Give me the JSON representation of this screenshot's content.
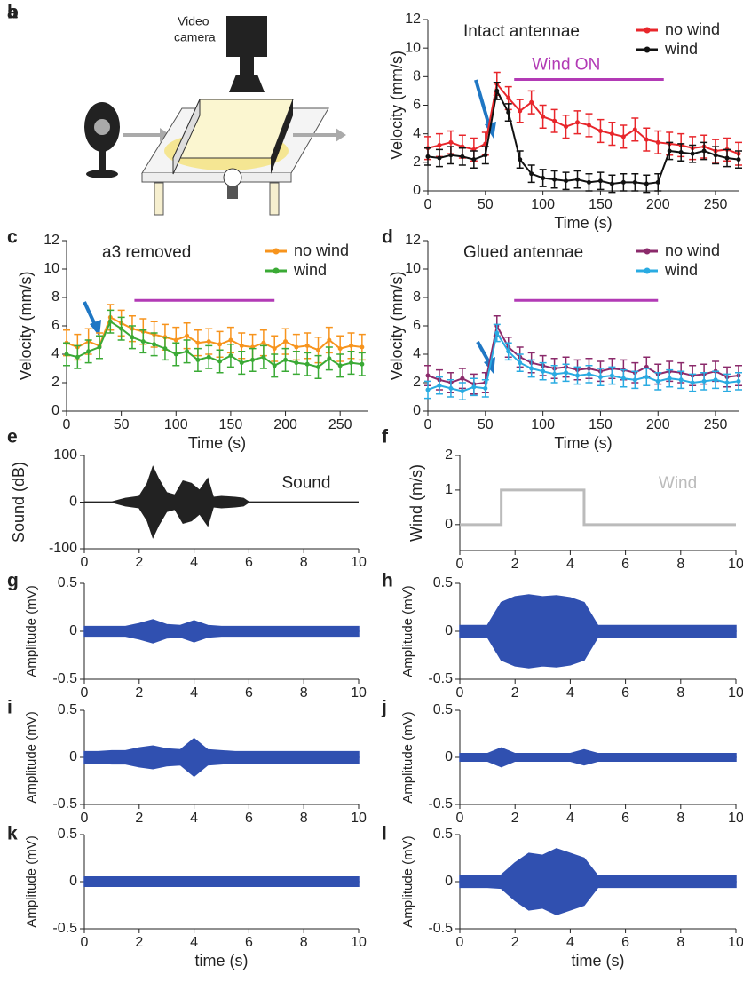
{
  "diagram": {
    "panel": "a",
    "label_lines": [
      "Video",
      "camera"
    ]
  },
  "chart_data": [
    {
      "panel": "b",
      "type": "line",
      "title": "Intact antennae",
      "annotation": "Wind ON",
      "stimulus_span": [
        75,
        205
      ],
      "stimulus_color": "#b23ab5",
      "xlabel": "Time (s)",
      "ylabel": "Velocity (mm/s)",
      "legend": "upper right",
      "x": [
        0,
        10,
        20,
        30,
        40,
        50,
        60,
        70,
        80,
        90,
        100,
        110,
        120,
        130,
        140,
        150,
        160,
        170,
        180,
        190,
        200,
        210,
        220,
        230,
        240,
        250,
        260,
        270
      ],
      "series": [
        {
          "name": "no wind",
          "color": "#e8262b",
          "error": 0.8,
          "values": [
            3.0,
            3.2,
            3.4,
            3.1,
            2.9,
            3.3,
            7.5,
            6.5,
            5.6,
            6.2,
            5.2,
            4.9,
            4.5,
            4.8,
            4.6,
            4.2,
            4.0,
            3.8,
            4.3,
            3.6,
            3.4,
            3.3,
            3.2,
            3.0,
            3.1,
            2.8,
            2.9,
            2.6
          ]
        },
        {
          "name": "wind",
          "color": "#111111",
          "error": 0.6,
          "values": [
            2.4,
            2.3,
            2.5,
            2.4,
            2.2,
            2.5,
            7.0,
            5.5,
            2.2,
            1.2,
            0.9,
            0.8,
            0.7,
            0.8,
            0.6,
            0.7,
            0.5,
            0.6,
            0.6,
            0.5,
            0.6,
            2.8,
            2.7,
            2.6,
            2.8,
            2.5,
            2.3,
            2.2
          ]
        }
      ],
      "xlim": [
        0,
        270
      ],
      "ylim": [
        0,
        12
      ],
      "xticks": [
        0,
        50,
        100,
        150,
        200,
        250
      ],
      "yticks": [
        0,
        2,
        4,
        6,
        8,
        10,
        12
      ]
    },
    {
      "panel": "c",
      "type": "line",
      "title": "a3 removed",
      "stimulus_span": [
        62,
        190
      ],
      "stimulus_color": "#b23ab5",
      "xlabel": "Time (s)",
      "ylabel": "Velocity (mm/s)",
      "legend": "upper right",
      "x": [
        0,
        10,
        20,
        30,
        40,
        50,
        60,
        70,
        80,
        90,
        100,
        110,
        120,
        130,
        140,
        150,
        160,
        170,
        180,
        190,
        200,
        210,
        220,
        230,
        240,
        250,
        260,
        270
      ],
      "series": [
        {
          "name": "no wind",
          "color": "#f7941d",
          "error": 0.9,
          "values": [
            4.8,
            4.5,
            4.9,
            4.6,
            6.6,
            6.2,
            5.8,
            5.6,
            5.4,
            5.2,
            5.0,
            5.3,
            4.8,
            4.9,
            4.7,
            5.0,
            4.6,
            4.5,
            4.8,
            4.4,
            4.9,
            4.5,
            4.6,
            4.3,
            5.0,
            4.4,
            4.6,
            4.5
          ]
        },
        {
          "name": "wind",
          "color": "#3aaa35",
          "error": 0.8,
          "values": [
            4.0,
            3.8,
            4.2,
            4.5,
            6.3,
            5.8,
            5.2,
            4.9,
            4.7,
            4.4,
            4.0,
            4.2,
            3.6,
            3.8,
            3.5,
            3.9,
            3.4,
            3.6,
            3.8,
            3.2,
            3.6,
            3.4,
            3.3,
            3.1,
            3.7,
            3.2,
            3.4,
            3.3
          ]
        }
      ],
      "xlim": [
        0,
        275
      ],
      "ylim": [
        0,
        12
      ],
      "xticks": [
        0,
        50,
        100,
        150,
        200,
        250
      ],
      "yticks": [
        0,
        2,
        4,
        6,
        8,
        10,
        12
      ]
    },
    {
      "panel": "d",
      "type": "line",
      "title": "Glued antennae",
      "stimulus_span": [
        75,
        200
      ],
      "stimulus_color": "#b23ab5",
      "xlabel": "Time (s)",
      "ylabel": "Velocity (mm/s)",
      "legend": "upper right",
      "x": [
        0,
        10,
        20,
        30,
        40,
        50,
        60,
        70,
        80,
        90,
        100,
        110,
        120,
        130,
        140,
        150,
        160,
        170,
        180,
        190,
        200,
        210,
        220,
        230,
        240,
        250,
        260,
        270
      ],
      "series": [
        {
          "name": "no wind",
          "color": "#8b2a6b",
          "error": 0.7,
          "values": [
            2.5,
            2.2,
            2.0,
            2.3,
            1.9,
            2.0,
            6.0,
            4.5,
            3.8,
            3.4,
            3.2,
            3.0,
            3.1,
            2.9,
            3.0,
            2.8,
            3.0,
            2.9,
            2.7,
            3.1,
            2.6,
            2.8,
            2.7,
            2.5,
            2.6,
            2.8,
            2.4,
            2.5
          ]
        },
        {
          "name": "wind",
          "color": "#29abe2",
          "error": 0.6,
          "values": [
            1.5,
            1.8,
            1.6,
            1.4,
            1.7,
            1.6,
            5.5,
            4.2,
            3.4,
            3.0,
            2.8,
            2.6,
            2.7,
            2.5,
            2.6,
            2.4,
            2.5,
            2.3,
            2.2,
            2.4,
            2.1,
            2.3,
            2.2,
            2.0,
            2.1,
            2.2,
            2.0,
            2.1
          ]
        }
      ],
      "xlim": [
        0,
        270
      ],
      "ylim": [
        0,
        12
      ],
      "xticks": [
        0,
        50,
        100,
        150,
        200,
        250
      ],
      "yticks": [
        0,
        2,
        4,
        6,
        8,
        10,
        12
      ]
    },
    {
      "panel": "e",
      "type": "area",
      "annotation": "Sound",
      "ylabel": "Sound (dB)",
      "x": [
        0,
        1,
        1.5,
        2,
        2.3,
        2.5,
        2.7,
        3,
        3.3,
        3.6,
        3.9,
        4.2,
        4.5,
        4.7,
        5,
        5.5,
        5.8,
        6,
        10
      ],
      "series": [
        {
          "color": "#222222",
          "values": [
            0,
            0,
            8,
            12,
            40,
            75,
            50,
            20,
            15,
            45,
            40,
            25,
            50,
            10,
            12,
            10,
            8,
            0,
            0
          ]
        }
      ],
      "xlim": [
        0,
        10
      ],
      "ylim": [
        -100,
        100
      ],
      "xticks": [
        0,
        2,
        4,
        6,
        8,
        10
      ],
      "yticks": [
        -100,
        0,
        100
      ]
    },
    {
      "panel": "f",
      "type": "line",
      "annotation": "Wind",
      "ylabel": "Wind (m/s)",
      "x": [
        0,
        1.5,
        1.5,
        4.5,
        4.5,
        10
      ],
      "series": [
        {
          "color": "#bbbbbb",
          "values": [
            0,
            0,
            1,
            1,
            0,
            0
          ]
        }
      ],
      "xlim": [
        0,
        10
      ],
      "ylim": [
        -0.75,
        2
      ],
      "xticks": [
        0,
        2,
        4,
        6,
        8,
        10
      ],
      "yticks": [
        0,
        1,
        2
      ]
    },
    {
      "panel": "g",
      "type": "area",
      "ylabel": "Amplitude (mV)",
      "x": [
        0,
        0.5,
        1,
        1.5,
        2,
        2.5,
        3,
        3.5,
        4,
        4.5,
        5,
        5.5,
        6,
        6.5,
        7,
        7.5,
        8,
        8.5,
        9,
        9.5,
        10
      ],
      "series": [
        {
          "color": "#3050b0",
          "values": [
            0.05,
            0.05,
            0.05,
            0.05,
            0.08,
            0.12,
            0.07,
            0.06,
            0.11,
            0.06,
            0.05,
            0.05,
            0.05,
            0.05,
            0.05,
            0.05,
            0.05,
            0.05,
            0.05,
            0.05,
            0.05
          ]
        }
      ],
      "xlim": [
        0,
        10
      ],
      "ylim": [
        -0.5,
        0.5
      ],
      "xticks": [
        0,
        2,
        4,
        6,
        8,
        10
      ],
      "yticks": [
        -0.5,
        0,
        0.5
      ]
    },
    {
      "panel": "h",
      "type": "area",
      "ylabel": "Amplitude (mV)",
      "x": [
        0,
        0.5,
        1,
        1.5,
        2,
        2.5,
        3,
        3.5,
        4,
        4.5,
        5,
        5.5,
        6,
        6.5,
        7,
        7.5,
        8,
        8.5,
        9,
        9.5,
        10
      ],
      "series": [
        {
          "color": "#3050b0",
          "values": [
            0.06,
            0.06,
            0.06,
            0.3,
            0.36,
            0.38,
            0.36,
            0.37,
            0.35,
            0.3,
            0.06,
            0.06,
            0.06,
            0.06,
            0.06,
            0.06,
            0.06,
            0.06,
            0.06,
            0.06,
            0.06
          ]
        }
      ],
      "xlim": [
        0,
        10
      ],
      "ylim": [
        -0.5,
        0.5
      ],
      "xticks": [
        0,
        2,
        4,
        6,
        8,
        10
      ],
      "yticks": [
        -0.5,
        0,
        0.5
      ]
    },
    {
      "panel": "i",
      "type": "area",
      "ylabel": "Amplitude (mV)",
      "x": [
        0,
        0.5,
        1,
        1.5,
        2,
        2.5,
        3,
        3.5,
        4,
        4.5,
        5,
        5.5,
        6,
        6.5,
        7,
        7.5,
        8,
        8.5,
        9,
        9.5,
        10
      ],
      "series": [
        {
          "color": "#3050b0",
          "values": [
            0.06,
            0.06,
            0.07,
            0.07,
            0.1,
            0.12,
            0.09,
            0.08,
            0.2,
            0.08,
            0.07,
            0.06,
            0.06,
            0.06,
            0.06,
            0.06,
            0.06,
            0.06,
            0.06,
            0.06,
            0.06
          ]
        }
      ],
      "xlim": [
        0,
        10
      ],
      "ylim": [
        -0.5,
        0.5
      ],
      "xticks": [
        0,
        2,
        4,
        6,
        8,
        10
      ],
      "yticks": [
        -0.5,
        0,
        0.5
      ]
    },
    {
      "panel": "j",
      "type": "area",
      "ylabel": "Amplitude (mV)",
      "x": [
        0,
        0.5,
        1,
        1.5,
        2,
        2.5,
        3,
        3.5,
        4,
        4.5,
        5,
        5.5,
        6,
        6.5,
        7,
        7.5,
        8,
        8.5,
        9,
        9.5,
        10
      ],
      "series": [
        {
          "color": "#3050b0",
          "values": [
            0.04,
            0.04,
            0.04,
            0.1,
            0.04,
            0.04,
            0.04,
            0.04,
            0.04,
            0.08,
            0.04,
            0.04,
            0.04,
            0.04,
            0.04,
            0.04,
            0.04,
            0.04,
            0.04,
            0.04,
            0.04
          ]
        }
      ],
      "xlim": [
        0,
        10
      ],
      "ylim": [
        -0.5,
        0.5
      ],
      "xticks": [
        0,
        2,
        4,
        6,
        8,
        10
      ],
      "yticks": [
        -0.5,
        0,
        0.5
      ]
    },
    {
      "panel": "k",
      "type": "area",
      "ylabel": "Amplitude (mV)",
      "xlabel": "time (s)",
      "x": [
        0,
        0.5,
        1,
        1.5,
        2,
        2.5,
        3,
        3.5,
        4,
        4.5,
        5,
        5.5,
        6,
        6.5,
        7,
        7.5,
        8,
        8.5,
        9,
        9.5,
        10
      ],
      "series": [
        {
          "color": "#3050b0",
          "values": [
            0.05,
            0.05,
            0.05,
            0.05,
            0.05,
            0.05,
            0.05,
            0.05,
            0.05,
            0.05,
            0.05,
            0.05,
            0.05,
            0.05,
            0.05,
            0.05,
            0.05,
            0.05,
            0.05,
            0.05,
            0.05
          ]
        }
      ],
      "xlim": [
        0,
        10
      ],
      "ylim": [
        -0.5,
        0.5
      ],
      "xticks": [
        0,
        2,
        4,
        6,
        8,
        10
      ],
      "yticks": [
        -0.5,
        0,
        0.5
      ]
    },
    {
      "panel": "l",
      "type": "area",
      "ylabel": "Amplitude (mV)",
      "xlabel": "time (s)",
      "x": [
        0,
        0.5,
        1,
        1.5,
        2,
        2.5,
        3,
        3.5,
        4,
        4.5,
        5,
        5.5,
        6,
        6.5,
        7,
        7.5,
        8,
        8.5,
        9,
        9.5,
        10
      ],
      "series": [
        {
          "color": "#3050b0",
          "values": [
            0.06,
            0.06,
            0.06,
            0.07,
            0.2,
            0.3,
            0.28,
            0.35,
            0.3,
            0.25,
            0.06,
            0.06,
            0.06,
            0.06,
            0.06,
            0.06,
            0.06,
            0.06,
            0.06,
            0.06,
            0.06
          ]
        }
      ],
      "xlim": [
        0,
        10
      ],
      "ylim": [
        -0.5,
        0.5
      ],
      "xticks": [
        0,
        2,
        4,
        6,
        8,
        10
      ],
      "yticks": [
        -0.5,
        0,
        0.5
      ]
    }
  ]
}
